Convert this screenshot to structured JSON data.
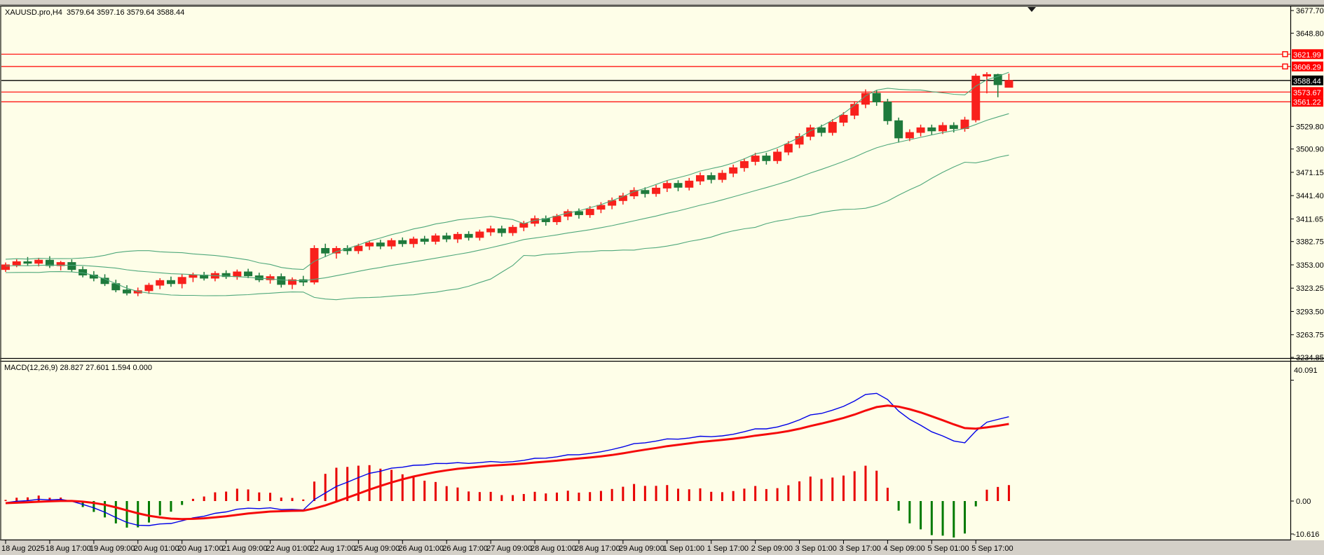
{
  "header": {
    "symbol_line": "XAUUSD.pro,H4  3579.64 3597.16 3579.64 3588.44"
  },
  "indicator": {
    "label": "MACD(12,26,9) 28.827 27.601 1.594 0.000",
    "name": "MACD",
    "params": [
      12,
      26,
      9
    ],
    "values": {
      "main": 28.827,
      "signal": 27.601,
      "histogram": 1.594,
      "extra": 0.0
    }
  },
  "price_axis": {
    "ticks": [
      3677.7,
      3648.8,
      3529.8,
      3500.9,
      3471.15,
      3441.4,
      3411.65,
      3382.75,
      3353.0,
      3323.25,
      3293.5,
      3263.75,
      3234.85
    ]
  },
  "macd_axis": {
    "top": "40.091",
    "zero": "0.00",
    "bottom": "-10.616",
    "top_v": 40.091,
    "zero_v": 0.0,
    "bottom_v": -10.616
  },
  "time_axis": {
    "labels": [
      "18 Aug 2025",
      "18 Aug 17:00",
      "19 Aug 09:00",
      "20 Aug 01:00",
      "20 Aug 17:00",
      "21 Aug 09:00",
      "22 Aug 01:00",
      "22 Aug 17:00",
      "25 Aug 09:00",
      "26 Aug 01:00",
      "26 Aug 17:00",
      "27 Aug 09:00",
      "28 Aug 01:00",
      "28 Aug 17:00",
      "29 Aug 09:00",
      "1 Sep 01:00",
      "1 Sep 17:00",
      "2 Sep 09:00",
      "3 Sep 01:00",
      "3 Sep 17:00",
      "4 Sep 09:00",
      "5 Sep 01:00",
      "5 Sep 17:00"
    ]
  },
  "price_lines": {
    "resistance": [
      {
        "price": 3621.99,
        "handle": true
      },
      {
        "price": 3606.29,
        "handle": true
      },
      {
        "price": 3573.67,
        "handle": false
      },
      {
        "price": 3561.22,
        "handle": false
      }
    ],
    "bid": {
      "price": 3588.44
    }
  },
  "colors": {
    "panel_bg": "#FEFEE8",
    "frame_gray": "#D4D0C8",
    "bull": "#F8201C",
    "bear": "#1E7A3C",
    "bollinger": "#4FA87B",
    "sr_line": "#FF0000",
    "bid_line": "#000000",
    "badge_red": "#FF0000",
    "badge_black": "#000000",
    "badge_text": "#FFFFFF",
    "macd_main": "#0000E8",
    "macd_signal": "#F50A0A",
    "hist_pos": "#E80000",
    "hist_neg": "#007A00",
    "axis_text": "#000000"
  },
  "chart_data": {
    "type": "candlestick",
    "title": "XAUUSD.pro,H4",
    "symbol": "XAUUSD.pro",
    "timeframe": "H4",
    "last_bar": {
      "open": 3579.64,
      "high": 3597.16,
      "low": 3579.64,
      "close": 3588.44
    },
    "ylim": [
      3234.85,
      3682.2
    ],
    "grid": false,
    "overlays": {
      "bollinger_period": 20,
      "bollinger_deviation": 2
    },
    "sub_chart": {
      "type": "macd",
      "params": [
        12,
        26,
        9
      ],
      "ylim": [
        -12.4,
        44.7
      ]
    },
    "warmup_closes": [
      3355,
      3349,
      3358,
      3351,
      3345,
      3357,
      3350,
      3344,
      3356,
      3352,
      3347,
      3359,
      3353,
      3348,
      3357,
      3351,
      3346,
      3355,
      3350,
      3352
    ],
    "candles": [
      [
        3347,
        3356,
        3344,
        3353
      ],
      [
        3353,
        3360,
        3350,
        3357
      ],
      [
        3357,
        3363,
        3352,
        3355
      ],
      [
        3355,
        3362,
        3351,
        3359
      ],
      [
        3359,
        3364,
        3349,
        3352
      ],
      [
        3352,
        3358,
        3346,
        3356
      ],
      [
        3356,
        3360,
        3344,
        3347
      ],
      [
        3347,
        3351,
        3337,
        3340
      ],
      [
        3340,
        3345,
        3332,
        3336
      ],
      [
        3336,
        3341,
        3326,
        3329
      ],
      [
        3329,
        3334,
        3318,
        3321
      ],
      [
        3321,
        3327,
        3314,
        3317
      ],
      [
        3317,
        3324,
        3313,
        3320
      ],
      [
        3320,
        3330,
        3316,
        3327
      ],
      [
        3327,
        3336,
        3322,
        3333
      ],
      [
        3333,
        3338,
        3325,
        3329
      ],
      [
        3329,
        3341,
        3323,
        3337
      ],
      [
        3337,
        3343,
        3331,
        3340
      ],
      [
        3340,
        3344,
        3333,
        3336
      ],
      [
        3336,
        3345,
        3332,
        3342
      ],
      [
        3342,
        3346,
        3335,
        3338
      ],
      [
        3338,
        3347,
        3334,
        3344
      ],
      [
        3344,
        3348,
        3336,
        3339
      ],
      [
        3339,
        3343,
        3331,
        3334
      ],
      [
        3334,
        3341,
        3329,
        3338
      ],
      [
        3338,
        3342,
        3324,
        3328
      ],
      [
        3328,
        3337,
        3322,
        3334
      ],
      [
        3334,
        3339,
        3326,
        3331
      ],
      [
        3331,
        3378,
        3328,
        3374
      ],
      [
        3374,
        3380,
        3363,
        3368
      ],
      [
        3368,
        3377,
        3361,
        3374
      ],
      [
        3374,
        3378,
        3366,
        3371
      ],
      [
        3371,
        3380,
        3367,
        3377
      ],
      [
        3377,
        3384,
        3372,
        3381
      ],
      [
        3381,
        3385,
        3373,
        3377
      ],
      [
        3377,
        3387,
        3373,
        3384
      ],
      [
        3384,
        3388,
        3376,
        3380
      ],
      [
        3380,
        3389,
        3375,
        3386
      ],
      [
        3386,
        3390,
        3379,
        3383
      ],
      [
        3383,
        3393,
        3379,
        3390
      ],
      [
        3390,
        3394,
        3382,
        3386
      ],
      [
        3386,
        3395,
        3381,
        3392
      ],
      [
        3392,
        3396,
        3384,
        3388
      ],
      [
        3388,
        3398,
        3384,
        3395
      ],
      [
        3395,
        3403,
        3390,
        3399
      ],
      [
        3399,
        3403,
        3389,
        3394
      ],
      [
        3394,
        3404,
        3390,
        3401
      ],
      [
        3401,
        3409,
        3396,
        3406
      ],
      [
        3406,
        3416,
        3402,
        3412
      ],
      [
        3412,
        3416,
        3403,
        3408
      ],
      [
        3408,
        3418,
        3404,
        3415
      ],
      [
        3415,
        3424,
        3410,
        3421
      ],
      [
        3421,
        3425,
        3412,
        3417
      ],
      [
        3417,
        3428,
        3413,
        3424
      ],
      [
        3424,
        3433,
        3419,
        3429
      ],
      [
        3429,
        3439,
        3424,
        3435
      ],
      [
        3435,
        3445,
        3430,
        3441
      ],
      [
        3441,
        3452,
        3437,
        3448
      ],
      [
        3448,
        3452,
        3439,
        3444
      ],
      [
        3444,
        3455,
        3440,
        3451
      ],
      [
        3451,
        3461,
        3446,
        3457
      ],
      [
        3457,
        3461,
        3447,
        3452
      ],
      [
        3452,
        3464,
        3448,
        3460
      ],
      [
        3460,
        3471,
        3455,
        3467
      ],
      [
        3467,
        3471,
        3457,
        3462
      ],
      [
        3462,
        3474,
        3458,
        3470
      ],
      [
        3470,
        3481,
        3465,
        3477
      ],
      [
        3477,
        3489,
        3472,
        3485
      ],
      [
        3485,
        3496,
        3480,
        3492
      ],
      [
        3492,
        3496,
        3481,
        3486
      ],
      [
        3486,
        3501,
        3482,
        3497
      ],
      [
        3497,
        3511,
        3493,
        3507
      ],
      [
        3507,
        3521,
        3502,
        3517
      ],
      [
        3517,
        3532,
        3512,
        3528
      ],
      [
        3528,
        3532,
        3517,
        3522
      ],
      [
        3522,
        3539,
        3518,
        3535
      ],
      [
        3535,
        3548,
        3530,
        3544
      ],
      [
        3544,
        3562,
        3539,
        3558
      ],
      [
        3558,
        3577,
        3553,
        3572
      ],
      [
        3572,
        3576,
        3556,
        3561
      ],
      [
        3561,
        3565,
        3532,
        3537
      ],
      [
        3537,
        3541,
        3509,
        3515
      ],
      [
        3515,
        3526,
        3511,
        3522
      ],
      [
        3522,
        3532,
        3517,
        3528
      ],
      [
        3528,
        3532,
        3519,
        3524
      ],
      [
        3524,
        3535,
        3520,
        3531
      ],
      [
        3531,
        3535,
        3522,
        3527
      ],
      [
        3527,
        3542,
        3523,
        3538
      ],
      [
        3538,
        3597,
        3535,
        3594
      ],
      [
        3594,
        3599,
        3572,
        3596
      ],
      [
        3596,
        3597,
        3567,
        3583
      ],
      [
        3579.64,
        3597.16,
        3579.64,
        3588.44
      ]
    ]
  }
}
